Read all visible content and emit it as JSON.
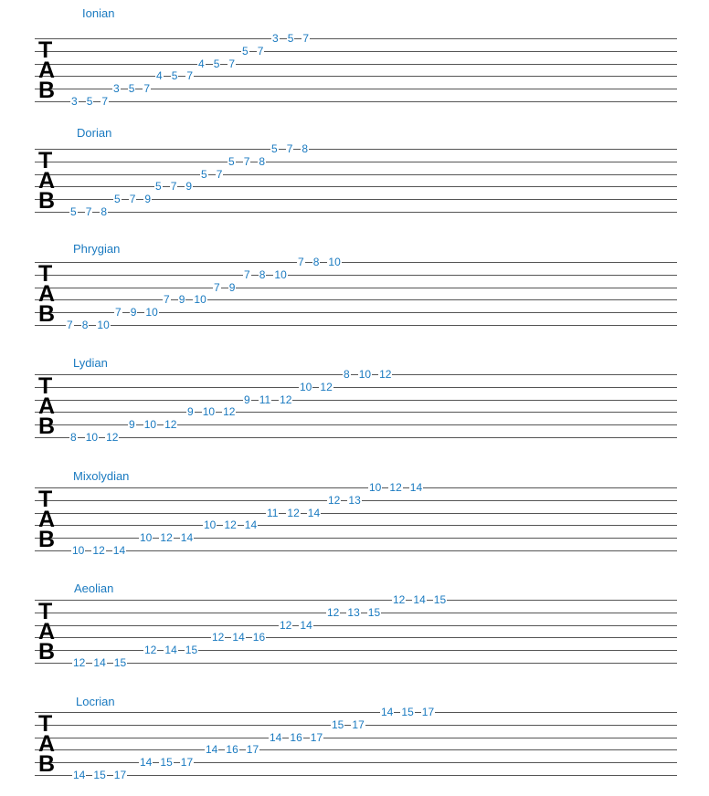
{
  "tab_label": [
    "T",
    "A",
    "B"
  ],
  "staves": [
    {
      "title": "Ionian",
      "strings": [
        {
          "string": 1,
          "frets": [
            "3",
            "5",
            "7"
          ]
        },
        {
          "string": 2,
          "frets": [
            "5",
            "7"
          ]
        },
        {
          "string": 3,
          "frets": [
            "4",
            "5",
            "7"
          ]
        },
        {
          "string": 4,
          "frets": [
            "4",
            "5",
            "7"
          ]
        },
        {
          "string": 5,
          "frets": [
            "3",
            "5",
            "7"
          ]
        },
        {
          "string": 6,
          "frets": [
            "3",
            "5",
            "7"
          ]
        }
      ]
    },
    {
      "title": "Dorian",
      "strings": [
        {
          "string": 1,
          "frets": [
            "5",
            "7",
            "8"
          ]
        },
        {
          "string": 2,
          "frets": [
            "5",
            "7",
            "8"
          ]
        },
        {
          "string": 3,
          "frets": [
            "5",
            "7"
          ]
        },
        {
          "string": 4,
          "frets": [
            "5",
            "7",
            "9"
          ]
        },
        {
          "string": 5,
          "frets": [
            "5",
            "7",
            "9"
          ]
        },
        {
          "string": 6,
          "frets": [
            "5",
            "7",
            "8"
          ]
        }
      ]
    },
    {
      "title": "Phrygian",
      "strings": [
        {
          "string": 1,
          "frets": [
            "7",
            "8",
            "10"
          ]
        },
        {
          "string": 2,
          "frets": [
            "7",
            "8",
            "10"
          ]
        },
        {
          "string": 3,
          "frets": [
            "7",
            "9"
          ]
        },
        {
          "string": 4,
          "frets": [
            "7",
            "9",
            "10"
          ]
        },
        {
          "string": 5,
          "frets": [
            "7",
            "9",
            "10"
          ]
        },
        {
          "string": 6,
          "frets": [
            "7",
            "8",
            "10"
          ]
        }
      ]
    },
    {
      "title": "Lydian",
      "strings": [
        {
          "string": 1,
          "frets": [
            "8",
            "10",
            "12"
          ]
        },
        {
          "string": 2,
          "frets": [
            "10",
            "12"
          ]
        },
        {
          "string": 3,
          "frets": [
            "9",
            "11",
            "12"
          ]
        },
        {
          "string": 4,
          "frets": [
            "9",
            "10",
            "12"
          ]
        },
        {
          "string": 5,
          "frets": [
            "9",
            "10",
            "12"
          ]
        },
        {
          "string": 6,
          "frets": [
            "8",
            "10",
            "12"
          ]
        }
      ]
    },
    {
      "title": "Mixolydian",
      "strings": [
        {
          "string": 1,
          "frets": [
            "10",
            "12",
            "14"
          ]
        },
        {
          "string": 2,
          "frets": [
            "12",
            "13"
          ]
        },
        {
          "string": 3,
          "frets": [
            "11",
            "12",
            "14"
          ]
        },
        {
          "string": 4,
          "frets": [
            "10",
            "12",
            "14"
          ]
        },
        {
          "string": 5,
          "frets": [
            "10",
            "12",
            "14"
          ]
        },
        {
          "string": 6,
          "frets": [
            "10",
            "12",
            "14"
          ]
        }
      ]
    },
    {
      "title": "Aeolian",
      "strings": [
        {
          "string": 1,
          "frets": [
            "12",
            "14",
            "15"
          ]
        },
        {
          "string": 2,
          "frets": [
            "12",
            "13",
            "15"
          ]
        },
        {
          "string": 3,
          "frets": [
            "12",
            "14"
          ]
        },
        {
          "string": 4,
          "frets": [
            "12",
            "14",
            "16"
          ]
        },
        {
          "string": 5,
          "frets": [
            "12",
            "14",
            "15"
          ]
        },
        {
          "string": 6,
          "frets": [
            "12",
            "14",
            "15"
          ]
        }
      ]
    },
    {
      "title": "Locrian",
      "strings": [
        {
          "string": 1,
          "frets": [
            "14",
            "15",
            "17"
          ]
        },
        {
          "string": 2,
          "frets": [
            "15",
            "17"
          ]
        },
        {
          "string": 3,
          "frets": [
            "14",
            "16",
            "17"
          ]
        },
        {
          "string": 4,
          "frets": [
            "14",
            "16",
            "17"
          ]
        },
        {
          "string": 5,
          "frets": [
            "14",
            "15",
            "17"
          ]
        },
        {
          "string": 6,
          "frets": [
            "14",
            "15",
            "17"
          ]
        }
      ]
    }
  ]
}
